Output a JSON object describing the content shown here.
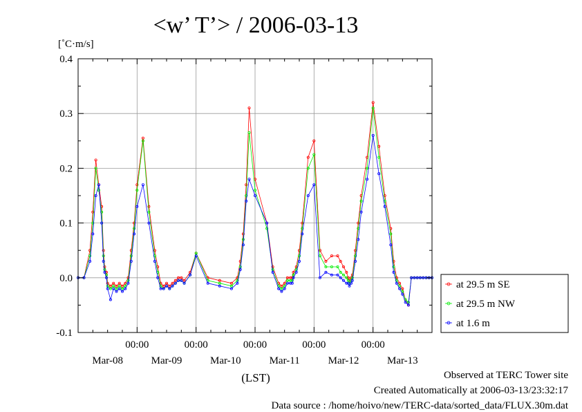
{
  "chart_data": {
    "type": "line",
    "title": "<w’ T’> / 2006-03-13",
    "ylabel": "[˚C·m/s]",
    "xlabel": "(LST)",
    "ylim": [
      -0.1,
      0.4
    ],
    "yticks": [
      -0.1,
      0.0,
      0.1,
      0.2,
      0.3,
      0.4
    ],
    "ytick_labels": [
      "-0.1",
      "0.0",
      "0.1",
      "0.2",
      "0.3",
      "0.4"
    ],
    "xlim": [
      -1.0,
      5.0
    ],
    "xticks": [
      0,
      1,
      2,
      3,
      4
    ],
    "xtick_time_labels": [
      "00:00",
      "00:00",
      "00:00",
      "00:00",
      "00:00"
    ],
    "xtick_date_labels": [
      "Mar-08",
      "Mar-09",
      "Mar-10",
      "Mar-11",
      "Mar-12",
      "Mar-13"
    ],
    "grid": true,
    "legend_position": "right",
    "series": [
      {
        "name": "at 29.5 m SE",
        "color": "#ff0000",
        "x": [
          -1.0,
          -0.9,
          -0.8,
          -0.75,
          -0.7,
          -0.65,
          -0.6,
          -0.57,
          -0.55,
          -0.52,
          -0.5,
          -0.45,
          -0.4,
          -0.35,
          -0.3,
          -0.25,
          -0.2,
          -0.15,
          -0.1,
          -0.05,
          0.0,
          0.1,
          0.2,
          0.3,
          0.35,
          0.4,
          0.45,
          0.5,
          0.55,
          0.6,
          0.65,
          0.7,
          0.75,
          0.8,
          0.9,
          1.0,
          1.2,
          1.4,
          1.6,
          1.7,
          1.75,
          1.8,
          1.85,
          1.9,
          2.0,
          2.2,
          2.3,
          2.4,
          2.45,
          2.5,
          2.55,
          2.6,
          2.63,
          2.65,
          2.7,
          2.75,
          2.8,
          2.9,
          3.0,
          3.1,
          3.2,
          3.3,
          3.4,
          3.45,
          3.5,
          3.55,
          3.58,
          3.6,
          3.63,
          3.65,
          3.7,
          3.75,
          3.8,
          3.9,
          4.0,
          4.1,
          4.2,
          4.3,
          4.35,
          4.4,
          4.45,
          4.5,
          4.55,
          4.6,
          4.65,
          4.7,
          4.75,
          4.8,
          4.85,
          4.9,
          4.95,
          5.0
        ],
        "values": [
          0.0,
          0.0,
          0.05,
          0.12,
          0.215,
          0.17,
          0.13,
          0.05,
          0.02,
          0.01,
          -0.01,
          -0.015,
          -0.01,
          -0.015,
          -0.01,
          -0.015,
          -0.01,
          0.0,
          0.05,
          0.1,
          0.17,
          0.255,
          0.13,
          0.05,
          0.02,
          -0.01,
          -0.015,
          -0.01,
          -0.015,
          -0.01,
          -0.005,
          0.0,
          0.0,
          -0.005,
          0.01,
          0.045,
          0.0,
          -0.005,
          -0.01,
          0.0,
          0.03,
          0.08,
          0.17,
          0.31,
          0.18,
          0.1,
          0.02,
          -0.01,
          -0.015,
          -0.01,
          0.0,
          0.0,
          0.0,
          0.01,
          0.02,
          0.05,
          0.1,
          0.22,
          0.25,
          0.05,
          0.03,
          0.04,
          0.04,
          0.03,
          0.02,
          0.01,
          0.0,
          -0.005,
          0.0,
          0.005,
          0.05,
          0.1,
          0.15,
          0.22,
          0.32,
          0.24,
          0.15,
          0.09,
          0.03,
          0.0,
          -0.01,
          -0.02,
          -0.04,
          -0.05,
          0.0,
          0.0,
          0.0,
          0.0,
          0.0,
          0.0,
          0.0,
          0.0
        ]
      },
      {
        "name": "at 29.5 m NW",
        "color": "#00ee00",
        "x": [
          -1.0,
          -0.9,
          -0.8,
          -0.75,
          -0.7,
          -0.65,
          -0.6,
          -0.57,
          -0.55,
          -0.52,
          -0.5,
          -0.45,
          -0.4,
          -0.35,
          -0.3,
          -0.25,
          -0.2,
          -0.15,
          -0.1,
          -0.05,
          0.0,
          0.1,
          0.2,
          0.3,
          0.35,
          0.4,
          0.45,
          0.5,
          0.55,
          0.6,
          0.65,
          0.7,
          0.75,
          0.8,
          0.9,
          1.0,
          1.2,
          1.4,
          1.6,
          1.7,
          1.75,
          1.8,
          1.85,
          1.9,
          2.0,
          2.2,
          2.3,
          2.4,
          2.45,
          2.5,
          2.55,
          2.6,
          2.63,
          2.65,
          2.7,
          2.75,
          2.8,
          2.9,
          3.0,
          3.1,
          3.2,
          3.3,
          3.4,
          3.45,
          3.5,
          3.55,
          3.58,
          3.6,
          3.63,
          3.65,
          3.7,
          3.75,
          3.8,
          3.9,
          4.0,
          4.1,
          4.2,
          4.3,
          4.35,
          4.4,
          4.45,
          4.5,
          4.55,
          4.6,
          4.65,
          4.7,
          4.75,
          4.8,
          4.85,
          4.9,
          4.95,
          5.0
        ],
        "values": [
          0.0,
          0.0,
          0.04,
          0.1,
          0.2,
          0.16,
          0.12,
          0.04,
          0.015,
          0.005,
          -0.015,
          -0.02,
          -0.015,
          -0.02,
          -0.015,
          -0.02,
          -0.015,
          -0.005,
          0.04,
          0.09,
          0.16,
          0.25,
          0.12,
          0.04,
          0.01,
          -0.015,
          -0.02,
          -0.015,
          -0.02,
          -0.015,
          -0.01,
          -0.005,
          -0.005,
          -0.01,
          0.005,
          0.045,
          -0.005,
          -0.01,
          -0.015,
          -0.005,
          0.02,
          0.07,
          0.15,
          0.265,
          0.16,
          0.09,
          0.015,
          -0.015,
          -0.02,
          -0.015,
          -0.005,
          -0.005,
          -0.005,
          0.005,
          0.015,
          0.04,
          0.09,
          0.2,
          0.225,
          0.04,
          0.02,
          0.02,
          0.02,
          0.01,
          0.005,
          0.0,
          -0.005,
          -0.01,
          -0.005,
          0.0,
          0.04,
          0.09,
          0.14,
          0.2,
          0.31,
          0.22,
          0.14,
          0.08,
          0.02,
          -0.005,
          -0.015,
          -0.025,
          -0.04,
          -0.045,
          0.0,
          0.0,
          0.0,
          0.0,
          0.0,
          0.0,
          0.0,
          0.0
        ]
      },
      {
        "name": "at 1.6 m",
        "color": "#0000ff",
        "x": [
          -1.0,
          -0.9,
          -0.8,
          -0.75,
          -0.7,
          -0.65,
          -0.6,
          -0.57,
          -0.55,
          -0.52,
          -0.5,
          -0.45,
          -0.4,
          -0.35,
          -0.3,
          -0.25,
          -0.2,
          -0.15,
          -0.1,
          -0.05,
          0.0,
          0.1,
          0.2,
          0.3,
          0.35,
          0.4,
          0.45,
          0.5,
          0.55,
          0.6,
          0.65,
          0.7,
          0.75,
          0.8,
          0.9,
          1.0,
          1.2,
          1.4,
          1.6,
          1.7,
          1.75,
          1.8,
          1.85,
          1.9,
          2.0,
          2.2,
          2.3,
          2.4,
          2.45,
          2.5,
          2.55,
          2.6,
          2.63,
          2.65,
          2.7,
          2.75,
          2.8,
          2.9,
          3.0,
          3.1,
          3.2,
          3.3,
          3.4,
          3.45,
          3.5,
          3.55,
          3.58,
          3.6,
          3.63,
          3.65,
          3.7,
          3.75,
          3.8,
          3.9,
          4.0,
          4.1,
          4.2,
          4.3,
          4.35,
          4.4,
          4.45,
          4.5,
          4.55,
          4.6,
          4.65,
          4.7,
          4.75,
          4.8,
          4.85,
          4.9,
          4.95,
          5.0
        ],
        "values": [
          0.0,
          0.0,
          0.03,
          0.08,
          0.15,
          0.17,
          0.1,
          0.03,
          0.01,
          0.0,
          -0.02,
          -0.04,
          -0.02,
          -0.025,
          -0.02,
          -0.025,
          -0.02,
          -0.01,
          0.03,
          0.08,
          0.13,
          0.17,
          0.1,
          0.03,
          0.0,
          -0.02,
          -0.02,
          -0.015,
          -0.02,
          -0.015,
          -0.01,
          -0.005,
          -0.005,
          -0.01,
          0.005,
          0.04,
          -0.01,
          -0.015,
          -0.02,
          -0.01,
          0.015,
          0.06,
          0.14,
          0.18,
          0.15,
          0.1,
          0.01,
          -0.02,
          -0.025,
          -0.02,
          -0.01,
          -0.01,
          -0.01,
          0.0,
          0.01,
          0.03,
          0.08,
          0.15,
          0.17,
          0.0,
          0.01,
          0.005,
          0.005,
          0.0,
          -0.005,
          -0.01,
          -0.01,
          -0.015,
          -0.01,
          -0.005,
          0.03,
          0.07,
          0.12,
          0.18,
          0.26,
          0.19,
          0.13,
          0.06,
          0.01,
          -0.01,
          -0.02,
          -0.03,
          -0.045,
          -0.05,
          0.0,
          0.0,
          0.0,
          0.0,
          0.0,
          0.0,
          0.0,
          0.0
        ]
      }
    ]
  },
  "footer": {
    "line1": "Observed at TERC Tower site",
    "line2": "Created Automatically at 2006-03-13/23:32:17",
    "line3": "Data source : /home/hoivo/new/TERC-data/sorted_data/FLUX.30m.dat"
  }
}
